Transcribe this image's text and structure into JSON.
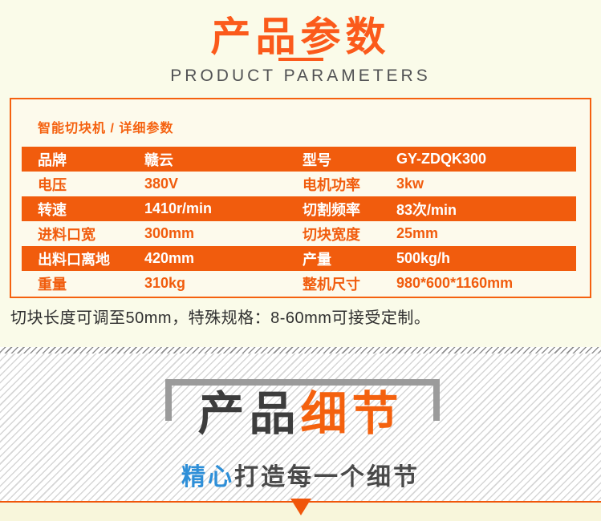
{
  "header": {
    "title_cn": "产品参数",
    "title_en": "PRODUCT PARAMETERS"
  },
  "spec_box": {
    "heading": "智能切块机 / 详细参数",
    "rows": [
      {
        "label1": "品牌",
        "value1": "赣云",
        "label2": "型号",
        "value2": "GY-ZDQK300"
      },
      {
        "label1": "电压",
        "value1": "380V",
        "label2": "电机功率",
        "value2": "3kw"
      },
      {
        "label1": "转速",
        "value1": "1410r/min",
        "label2": "切割频率",
        "value2": "83次/min"
      },
      {
        "label1": "进料口宽",
        "value1": "300mm",
        "label2": "切块宽度",
        "value2": "25mm"
      },
      {
        "label1": "出料口离地",
        "value1": "420mm",
        "label2": "产量",
        "value2": "500kg/h"
      },
      {
        "label1": "重量",
        "value1": "310kg",
        "label2": "整机尺寸",
        "value2": "980*600*1160mm"
      }
    ]
  },
  "note": "切块长度可调至50mm，特殊规格：8-60mm可接受定制。",
  "details": {
    "title_black": "产品",
    "title_orange": "细节",
    "subtitle_blue": "精心",
    "subtitle_gray": "打造每一个细节"
  },
  "colors": {
    "accent_orange": "#f15c0d",
    "title_orange": "#fb5a1b",
    "accent_blue": "#2e8fd8",
    "page_background": "#fafbe9"
  }
}
